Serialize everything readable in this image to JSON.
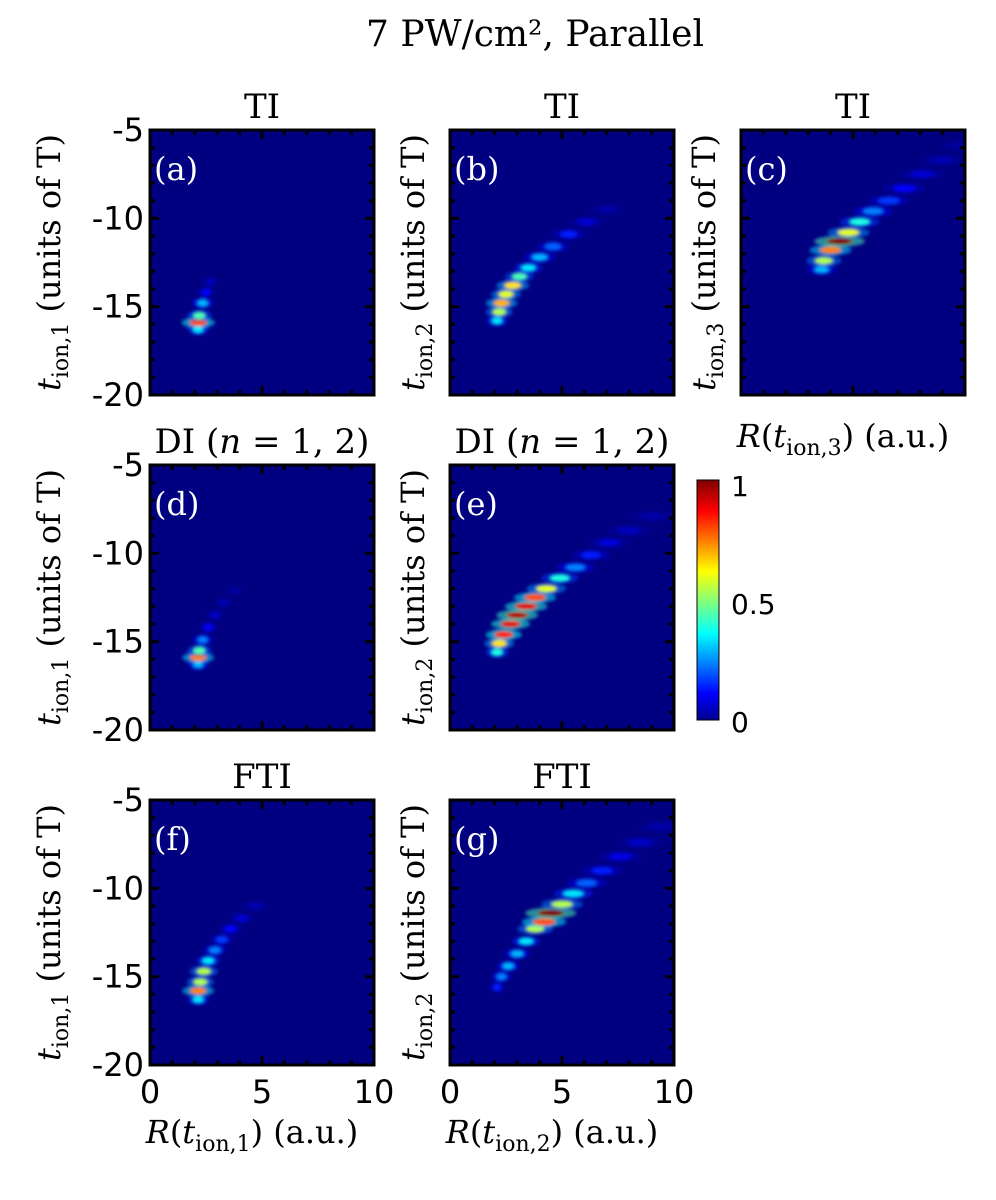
{
  "figure": {
    "title": "7 PW/cm², Parallel"
  },
  "chart_data": [
    {
      "type": "heatmap",
      "panel": "(a)",
      "title": "TI",
      "xlabel": "",
      "ylabel": "t_ion,1 (units of T)",
      "xlim": [
        0,
        10
      ],
      "ylim": [
        -20,
        -5
      ],
      "xticks": [
        "0",
        "5",
        "10"
      ],
      "yticks": [
        "-5",
        "-10",
        "-15",
        "-20"
      ],
      "x_tick_labels_shown": false,
      "y_tick_labels_shown": true,
      "blobs": [
        {
          "x": 2.15,
          "y": -16.3,
          "v": 0.35
        },
        {
          "x": 2.15,
          "y": -15.9,
          "v": 0.8
        },
        {
          "x": 2.2,
          "y": -15.5,
          "v": 0.45
        },
        {
          "x": 2.35,
          "y": -14.8,
          "v": 0.3
        },
        {
          "x": 2.5,
          "y": -14.2,
          "v": 0.12
        },
        {
          "x": 2.7,
          "y": -13.6,
          "v": 0.06
        }
      ]
    },
    {
      "type": "heatmap",
      "panel": "(b)",
      "title": "TI",
      "xlabel": "",
      "ylabel": "t_ion,2 (units of T)",
      "xlim": [
        0,
        10
      ],
      "ylim": [
        -20,
        -5
      ],
      "xticks": [
        "0",
        "5",
        "10"
      ],
      "yticks": [
        "-5",
        "-10",
        "-15",
        "-20"
      ],
      "x_tick_labels_shown": false,
      "y_tick_labels_shown": false,
      "blobs": [
        {
          "x": 2.1,
          "y": -15.8,
          "v": 0.35
        },
        {
          "x": 2.2,
          "y": -15.3,
          "v": 0.55
        },
        {
          "x": 2.3,
          "y": -14.8,
          "v": 0.7
        },
        {
          "x": 2.5,
          "y": -14.3,
          "v": 0.6
        },
        {
          "x": 2.8,
          "y": -13.8,
          "v": 0.65
        },
        {
          "x": 3.1,
          "y": -13.3,
          "v": 0.45
        },
        {
          "x": 3.5,
          "y": -12.8,
          "v": 0.35
        },
        {
          "x": 4.0,
          "y": -12.2,
          "v": 0.3
        },
        {
          "x": 4.6,
          "y": -11.6,
          "v": 0.22
        },
        {
          "x": 5.3,
          "y": -10.9,
          "v": 0.15
        },
        {
          "x": 6.1,
          "y": -10.2,
          "v": 0.08
        },
        {
          "x": 7.0,
          "y": -9.5,
          "v": 0.04
        }
      ]
    },
    {
      "type": "heatmap",
      "panel": "(c)",
      "title": "TI",
      "xlabel": "R(t_ion,3) (a.u.)",
      "ylabel": "t_ion,3 (units of T)",
      "xlim": [
        0,
        10
      ],
      "ylim": [
        -20,
        -5
      ],
      "xticks": [
        "0",
        "5",
        "10"
      ],
      "yticks": [
        "-5",
        "-10",
        "-15",
        "-20"
      ],
      "x_tick_labels_shown": false,
      "y_tick_labels_shown": false,
      "blobs": [
        {
          "x": 3.6,
          "y": -12.9,
          "v": 0.3
        },
        {
          "x": 3.7,
          "y": -12.4,
          "v": 0.55
        },
        {
          "x": 4.0,
          "y": -11.8,
          "v": 0.75
        },
        {
          "x": 4.4,
          "y": -11.3,
          "v": 1.0
        },
        {
          "x": 4.8,
          "y": -10.8,
          "v": 0.6
        },
        {
          "x": 5.3,
          "y": -10.2,
          "v": 0.4
        },
        {
          "x": 5.9,
          "y": -9.6,
          "v": 0.25
        },
        {
          "x": 6.6,
          "y": -9.0,
          "v": 0.18
        },
        {
          "x": 7.3,
          "y": -8.3,
          "v": 0.12
        },
        {
          "x": 8.1,
          "y": -7.5,
          "v": 0.08
        },
        {
          "x": 9.0,
          "y": -6.7,
          "v": 0.05
        },
        {
          "x": 9.8,
          "y": -5.9,
          "v": 0.03
        }
      ]
    },
    {
      "type": "heatmap",
      "panel": "(d)",
      "title": "DI (n = 1, 2)",
      "xlabel": "",
      "ylabel": "t_ion,1 (units of T)",
      "xlim": [
        0,
        10
      ],
      "ylim": [
        -20,
        -5
      ],
      "xticks": [
        "0",
        "5",
        "10"
      ],
      "yticks": [
        "-5",
        "-10",
        "-15",
        "-20"
      ],
      "x_tick_labels_shown": false,
      "y_tick_labels_shown": true,
      "blobs": [
        {
          "x": 2.15,
          "y": -16.3,
          "v": 0.3
        },
        {
          "x": 2.15,
          "y": -15.9,
          "v": 0.75
        },
        {
          "x": 2.2,
          "y": -15.5,
          "v": 0.45
        },
        {
          "x": 2.35,
          "y": -14.9,
          "v": 0.25
        },
        {
          "x": 2.6,
          "y": -14.2,
          "v": 0.12
        },
        {
          "x": 2.9,
          "y": -13.5,
          "v": 0.07
        },
        {
          "x": 3.3,
          "y": -12.8,
          "v": 0.05
        },
        {
          "x": 3.8,
          "y": -12.1,
          "v": 0.03
        }
      ]
    },
    {
      "type": "heatmap",
      "panel": "(e)",
      "title": "DI (n = 1, 2)",
      "xlabel": "",
      "ylabel": "t_ion,2 (units of T)",
      "xlim": [
        0,
        10
      ],
      "ylim": [
        -20,
        -5
      ],
      "xticks": [
        "0",
        "5",
        "10"
      ],
      "yticks": [
        "-5",
        "-10",
        "-15",
        "-20"
      ],
      "x_tick_labels_shown": false,
      "y_tick_labels_shown": false,
      "blobs": [
        {
          "x": 2.1,
          "y": -15.6,
          "v": 0.4
        },
        {
          "x": 2.2,
          "y": -15.1,
          "v": 0.65
        },
        {
          "x": 2.4,
          "y": -14.6,
          "v": 0.85
        },
        {
          "x": 2.7,
          "y": -14.0,
          "v": 0.9
        },
        {
          "x": 3.0,
          "y": -13.5,
          "v": 0.95
        },
        {
          "x": 3.4,
          "y": -13.0,
          "v": 0.9
        },
        {
          "x": 3.8,
          "y": -12.5,
          "v": 0.8
        },
        {
          "x": 4.3,
          "y": -12.0,
          "v": 0.6
        },
        {
          "x": 4.9,
          "y": -11.4,
          "v": 0.4
        },
        {
          "x": 5.6,
          "y": -10.8,
          "v": 0.25
        },
        {
          "x": 6.3,
          "y": -10.1,
          "v": 0.15
        },
        {
          "x": 7.1,
          "y": -9.4,
          "v": 0.09
        },
        {
          "x": 8.0,
          "y": -8.7,
          "v": 0.06
        },
        {
          "x": 9.0,
          "y": -7.9,
          "v": 0.04
        }
      ]
    },
    {
      "type": "heatmap",
      "panel": "(f)",
      "title": "FTI",
      "xlabel": "R(t_ion,1) (a.u.)",
      "ylabel": "t_ion,1 (units of T)",
      "xlim": [
        0,
        10
      ],
      "ylim": [
        -20,
        -5
      ],
      "xticks": [
        "0",
        "5",
        "10"
      ],
      "yticks": [
        "-5",
        "-10",
        "-15",
        "-20"
      ],
      "x_tick_labels_shown": true,
      "y_tick_labels_shown": true,
      "blobs": [
        {
          "x": 2.15,
          "y": -16.3,
          "v": 0.35
        },
        {
          "x": 2.15,
          "y": -15.8,
          "v": 0.75
        },
        {
          "x": 2.25,
          "y": -15.3,
          "v": 0.55
        },
        {
          "x": 2.4,
          "y": -14.7,
          "v": 0.55
        },
        {
          "x": 2.6,
          "y": -14.1,
          "v": 0.35
        },
        {
          "x": 2.9,
          "y": -13.5,
          "v": 0.25
        },
        {
          "x": 3.2,
          "y": -12.9,
          "v": 0.18
        },
        {
          "x": 3.6,
          "y": -12.3,
          "v": 0.12
        },
        {
          "x": 4.1,
          "y": -11.7,
          "v": 0.08
        },
        {
          "x": 4.7,
          "y": -11.0,
          "v": 0.05
        }
      ]
    },
    {
      "type": "heatmap",
      "panel": "(g)",
      "title": "FTI",
      "xlabel": "R(t_ion,2) (a.u.)",
      "ylabel": "t_ion,2 (units of T)",
      "xlim": [
        0,
        10
      ],
      "ylim": [
        -20,
        -5
      ],
      "xticks": [
        "0",
        "5",
        "10"
      ],
      "yticks": [
        "-5",
        "-10",
        "-15",
        "-20"
      ],
      "x_tick_labels_shown": true,
      "y_tick_labels_shown": false,
      "blobs": [
        {
          "x": 2.1,
          "y": -15.6,
          "v": 0.15
        },
        {
          "x": 2.3,
          "y": -15.0,
          "v": 0.25
        },
        {
          "x": 2.6,
          "y": -14.4,
          "v": 0.3
        },
        {
          "x": 3.0,
          "y": -13.7,
          "v": 0.3
        },
        {
          "x": 3.4,
          "y": -13.0,
          "v": 0.35
        },
        {
          "x": 3.8,
          "y": -12.3,
          "v": 0.55
        },
        {
          "x": 4.2,
          "y": -11.9,
          "v": 0.8
        },
        {
          "x": 4.5,
          "y": -11.4,
          "v": 1.0
        },
        {
          "x": 5.0,
          "y": -10.9,
          "v": 0.55
        },
        {
          "x": 5.5,
          "y": -10.3,
          "v": 0.35
        },
        {
          "x": 6.1,
          "y": -9.7,
          "v": 0.22
        },
        {
          "x": 6.8,
          "y": -9.0,
          "v": 0.15
        },
        {
          "x": 7.6,
          "y": -8.2,
          "v": 0.1
        },
        {
          "x": 8.5,
          "y": -7.4,
          "v": 0.07
        },
        {
          "x": 9.4,
          "y": -6.5,
          "v": 0.04
        }
      ]
    }
  ],
  "colorbar": {
    "colormap": "jet",
    "range": [
      0,
      1
    ],
    "ticks": [
      "0",
      "0.5",
      "1"
    ],
    "colors": [
      "#00008f",
      "#0000ff",
      "#00ffff",
      "#ffff00",
      "#ff0000",
      "#800000"
    ]
  }
}
